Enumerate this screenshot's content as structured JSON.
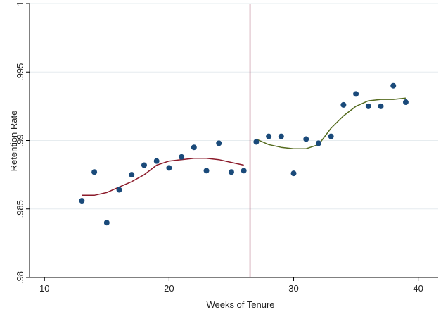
{
  "chart_data": {
    "type": "scatter",
    "xlabel": "Weeks of Tenure",
    "ylabel": "Retention Rate",
    "xlim": [
      8.8,
      41.6
    ],
    "ylim": [
      0.98,
      1.0
    ],
    "x_ticks": [
      10,
      20,
      30,
      40
    ],
    "x_tick_labels": [
      "10",
      "20",
      "30",
      "40"
    ],
    "y_ticks": [
      0.98,
      0.985,
      0.99,
      0.995,
      1.0
    ],
    "y_tick_labels": [
      ".98",
      ".985",
      ".99",
      ".995",
      "1"
    ],
    "grid": "horizontal",
    "cutoff_x": 26.5,
    "points": {
      "x": [
        13,
        14,
        15,
        16,
        17,
        18,
        19,
        20,
        21,
        22,
        23,
        24,
        25,
        26,
        27,
        28,
        29,
        30,
        31,
        32,
        33,
        34,
        35,
        36,
        37,
        38,
        39
      ],
      "y": [
        0.9856,
        0.9877,
        0.984,
        0.9864,
        0.9875,
        0.9882,
        0.9885,
        0.988,
        0.9888,
        0.9895,
        0.9878,
        0.9898,
        0.9877,
        0.9878,
        0.9899,
        0.9903,
        0.9903,
        0.9876,
        0.9901,
        0.9898,
        0.9903,
        0.9926,
        0.9934,
        0.9925,
        0.9925,
        0.994,
        0.9928
      ]
    },
    "fit_before": {
      "x": [
        13,
        14,
        15,
        16,
        17,
        18,
        19,
        20,
        21,
        22,
        23,
        24,
        25,
        26
      ],
      "y": [
        0.986,
        0.986,
        0.9862,
        0.9866,
        0.987,
        0.9875,
        0.9882,
        0.9885,
        0.9886,
        0.9887,
        0.9887,
        0.9886,
        0.9884,
        0.9882
      ]
    },
    "fit_after": {
      "x": [
        27,
        28,
        29,
        30,
        31,
        32,
        33,
        34,
        35,
        36,
        37,
        38,
        39
      ],
      "y": [
        0.9901,
        0.9897,
        0.9895,
        0.9894,
        0.9894,
        0.9897,
        0.9909,
        0.9918,
        0.9925,
        0.9929,
        0.993,
        0.993,
        0.9931
      ]
    },
    "colors": {
      "points": "#1a4a7a",
      "fit_before": "#8b1a2a",
      "fit_after": "#556b1e",
      "cutoff_line": "#8b1a3a",
      "grid": "#e6ecef",
      "axis": "#000000"
    }
  }
}
